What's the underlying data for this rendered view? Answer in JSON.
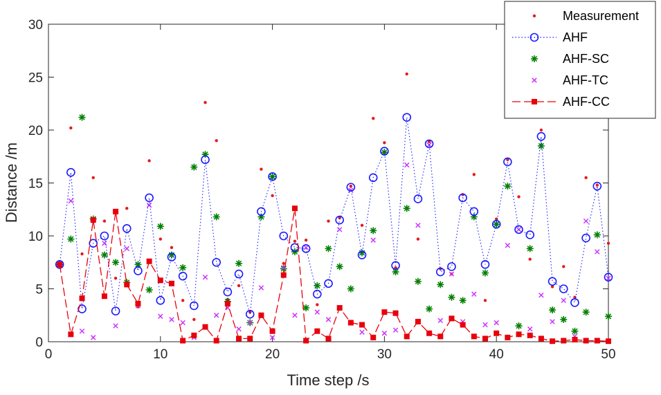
{
  "chart_data": {
    "type": "scatter",
    "title": "",
    "xlabel": "Time step /s",
    "ylabel": "Distance /m",
    "xlim": [
      0,
      50
    ],
    "ylim": [
      0,
      30
    ],
    "xticks": [
      0,
      10,
      20,
      30,
      40,
      50
    ],
    "yticks": [
      0,
      5,
      10,
      15,
      20,
      25,
      30
    ],
    "xtick_labels": [
      "0",
      "10",
      "20",
      "30",
      "40",
      "50"
    ],
    "ytick_labels": [
      "0",
      "5",
      "10",
      "15",
      "20",
      "25",
      "30"
    ],
    "legend_position": "top-right",
    "x": [
      1,
      2,
      3,
      4,
      5,
      6,
      7,
      8,
      9,
      10,
      11,
      12,
      13,
      14,
      15,
      16,
      17,
      18,
      19,
      20,
      21,
      22,
      23,
      24,
      25,
      26,
      27,
      28,
      29,
      30,
      31,
      32,
      33,
      34,
      35,
      36,
      37,
      38,
      39,
      40,
      41,
      42,
      43,
      44,
      45,
      46,
      47,
      48,
      49,
      50
    ],
    "series": [
      {
        "name": "Measurement",
        "marker": "dot",
        "line": "none",
        "color": "#e41a1c",
        "values": [
          7.4,
          20.2,
          8.3,
          15.5,
          11.4,
          6.0,
          12.6,
          3.3,
          17.1,
          9.7,
          8.9,
          3.9,
          2.1,
          22.6,
          19.0,
          4.0,
          5.3,
          2.8,
          16.3,
          13.8,
          7.4,
          9.5,
          9.6,
          3.5,
          11.4,
          11.7,
          14.7,
          11.0,
          21.1,
          18.8,
          7.0,
          25.3,
          9.7,
          18.9,
          6.9,
          6.4,
          13.9,
          15.8,
          3.9,
          11.6,
          17.2,
          13.7,
          7.8,
          20.0,
          5.2,
          7.1,
          4.2,
          15.5,
          14.8,
          9.3
        ]
      },
      {
        "name": "AHF",
        "marker": "circle",
        "line": "dotted",
        "color": "#1a1aff",
        "values": [
          7.3,
          16.0,
          3.1,
          9.3,
          10.0,
          2.9,
          10.7,
          6.7,
          13.6,
          3.9,
          8.0,
          6.2,
          3.4,
          17.2,
          7.5,
          4.7,
          6.4,
          2.6,
          12.3,
          15.6,
          10.0,
          8.9,
          8.8,
          4.5,
          5.5,
          11.5,
          14.6,
          8.2,
          15.5,
          18.0,
          7.2,
          21.2,
          13.5,
          18.7,
          6.6,
          7.1,
          13.6,
          12.3,
          7.3,
          11.1,
          17.0,
          10.6,
          10.1,
          19.4,
          5.7,
          5.0,
          3.7,
          9.8,
          14.7,
          6.1
        ]
      },
      {
        "name": "AHF-SC",
        "marker": "asterisk",
        "line": "none",
        "color": "#008000",
        "values": [
          7.3,
          9.7,
          21.2,
          11.6,
          8.2,
          7.5,
          5.6,
          7.3,
          4.9,
          10.9,
          8.2,
          7.0,
          16.5,
          17.7,
          11.8,
          3.8,
          7.4,
          1.8,
          11.8,
          15.6,
          6.9,
          8.5,
          3.2,
          5.3,
          8.8,
          7.1,
          5.0,
          8.4,
          10.5,
          17.9,
          6.6,
          12.6,
          5.7,
          3.1,
          5.4,
          4.2,
          3.9,
          11.8,
          6.5,
          11.1,
          14.7,
          1.5,
          8.8,
          18.5,
          3.0,
          2.1,
          1.0,
          2.8,
          10.1,
          2.4
        ]
      },
      {
        "name": "AHF-TC",
        "marker": "x",
        "line": "none",
        "color": "#cc33ff",
        "values": [
          7.3,
          13.3,
          1.0,
          0.4,
          9.3,
          1.5,
          8.8,
          3.4,
          12.9,
          2.4,
          2.1,
          1.8,
          0.4,
          6.1,
          2.5,
          3.2,
          1.2,
          1.8,
          5.1,
          0.4,
          7.0,
          2.5,
          8.9,
          2.8,
          2.1,
          10.6,
          14.3,
          0.9,
          9.6,
          0.8,
          1.1,
          16.7,
          11.0,
          18.6,
          2.0,
          6.4,
          1.9,
          4.5,
          1.6,
          1.8,
          9.1,
          10.6,
          1.2,
          4.4,
          1.9,
          3.9,
          0.5,
          11.4,
          8.5,
          6.0
        ]
      },
      {
        "name": "AHF-CC",
        "marker": "square",
        "line": "dashed",
        "color": "#e8000b",
        "values": [
          7.3,
          0.7,
          4.1,
          11.5,
          4.3,
          12.3,
          5.4,
          3.6,
          7.6,
          5.8,
          5.5,
          0.1,
          0.6,
          1.4,
          0.1,
          3.6,
          0.3,
          0.3,
          2.5,
          1.0,
          6.3,
          12.6,
          0.1,
          1.0,
          0.3,
          3.2,
          1.8,
          1.6,
          0.4,
          2.8,
          2.7,
          0.5,
          1.9,
          0.8,
          0.5,
          2.2,
          1.6,
          0.5,
          0.3,
          0.8,
          0.4,
          0.7,
          0.6,
          0.3,
          0.05,
          0.1,
          0.2,
          0.1,
          0.1,
          0.05
        ]
      }
    ]
  }
}
